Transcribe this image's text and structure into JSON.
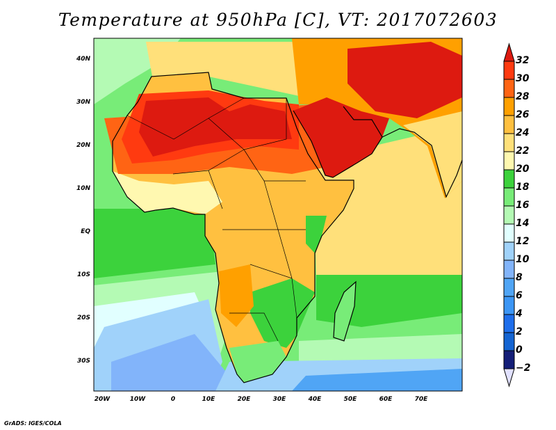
{
  "title": "Temperature at 950hPa [C], VT: 2017072603",
  "footer": "GrADS: IGES/COLA",
  "lat_ticks": [
    "40N",
    "30N",
    "20N",
    "10N",
    "EQ",
    "10S",
    "20S",
    "30S"
  ],
  "lon_ticks": [
    "20W",
    "10W",
    "0",
    "10E",
    "20E",
    "30E",
    "40E",
    "50E",
    "60E",
    "70E"
  ],
  "colorbar": {
    "labels": [
      "32",
      "30",
      "28",
      "26",
      "24",
      "22",
      "20",
      "18",
      "16",
      "14",
      "12",
      "10",
      "8",
      "6",
      "4",
      "2",
      "0",
      "-2"
    ],
    "colors": [
      "#dd1a10",
      "#ff3a10",
      "#ff6414",
      "#ffa000",
      "#ffc040",
      "#ffe07a",
      "#fff8b0",
      "#3cd23c",
      "#78ec78",
      "#b4fab4",
      "#e1ffff",
      "#a0d2fa",
      "#82b4fa",
      "#50a5f5",
      "#3c96f5",
      "#1e6eeb",
      "#1464d2",
      "#141e78",
      "#e1e1ff"
    ]
  }
}
